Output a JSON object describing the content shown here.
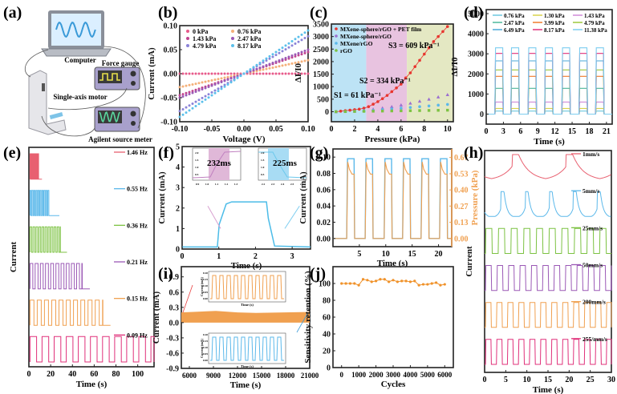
{
  "figure": {
    "panel_labels": [
      "(a)",
      "(b)",
      "(c)",
      "(d)",
      "(e)",
      "(f)",
      "(g)",
      "(h)",
      "(i)",
      "(j)"
    ]
  },
  "schematic": {
    "label": "(a)",
    "components": [
      "Computer",
      "Force gauge",
      "Single-axis motor",
      "Agilent source meter"
    ]
  },
  "chart_data": [
    {
      "id": "b",
      "type": "scatter",
      "title": "",
      "xlabel": "Voltage (V)",
      "ylabel": "Current (mA)",
      "xlim": [
        -0.1,
        0.1
      ],
      "ylim": [
        -0.1,
        0.1
      ],
      "xticks": [
        "-0.10",
        "-0.05",
        "0.00",
        "0.05",
        "0.10"
      ],
      "yticks": [
        "-0.10",
        "-0.05",
        "0.00",
        "0.05",
        "0.10"
      ],
      "legend": "top-left",
      "series": [
        {
          "name": "0 kPa",
          "color": "#e75a8a",
          "slope": 0.0
        },
        {
          "name": "0.76 kPa",
          "color": "#f4b07a",
          "slope": 0.28
        },
        {
          "name": "1.43 kPa",
          "color": "#c0448f",
          "slope": 0.45
        },
        {
          "name": "2.47 kPa",
          "color": "#9b59b6",
          "slope": 0.5
        },
        {
          "name": "4.79 kPa",
          "color": "#8a82d8",
          "slope": 0.78
        },
        {
          "name": "8.17 kPa",
          "color": "#5bc0eb",
          "slope": 0.9
        }
      ]
    },
    {
      "id": "c",
      "type": "scatter",
      "xlabel": "Pressure (kPa)",
      "ylabel": "ΔI/I0",
      "xlim": [
        0,
        10.5
      ],
      "ylim": [
        -400,
        3500
      ],
      "xticks": [
        "0",
        "2",
        "4",
        "6",
        "8",
        "10"
      ],
      "yticks": [
        "0",
        "500",
        "1000",
        "1500",
        "2000",
        "2500",
        "3000",
        "3500"
      ],
      "regions": [
        {
          "from": 0,
          "to": 3,
          "color": "#bde3f5"
        },
        {
          "from": 3,
          "to": 6.5,
          "color": "#e8c3e0"
        },
        {
          "from": 6.5,
          "to": 10.5,
          "color": "#e4e8c3"
        }
      ],
      "annotations": [
        "S1 = 61 kPa⁻¹",
        "S2 = 334 kPa⁻¹",
        "S3 = 609 kPa⁻¹"
      ],
      "legend": "top-left",
      "series": [
        {
          "name": "MXene-sphere/rGO + PET film",
          "color": "#e8352e",
          "x": [
            0.4,
            0.8,
            1.2,
            1.6,
            2.0,
            2.4,
            2.8,
            3.2,
            3.6,
            4.0,
            4.4,
            4.8,
            5.2,
            5.6,
            6.0,
            6.4,
            6.8,
            7.2,
            7.6,
            8.0,
            8.4,
            8.8,
            9.2,
            9.6,
            10.0
          ],
          "y": [
            0,
            20,
            40,
            60,
            80,
            100,
            140,
            200,
            300,
            400,
            520,
            650,
            800,
            950,
            1100,
            1350,
            1550,
            1800,
            2050,
            2300,
            2550,
            2800,
            3000,
            3200,
            3400
          ]
        },
        {
          "name": "MXene-sphere/rGO",
          "color": "#9b6fd0",
          "x": [
            0.4,
            1.2,
            2.0,
            2.8,
            3.6,
            4.4,
            5.2,
            6.0,
            6.8,
            7.6,
            8.4,
            9.2,
            10.0
          ],
          "y": [
            0,
            10,
            30,
            60,
            100,
            150,
            200,
            270,
            340,
            420,
            500,
            590,
            680
          ]
        },
        {
          "name": "MXene/rGO",
          "color": "#5bb8ea",
          "x": [
            0.4,
            1.2,
            2.0,
            2.8,
            3.6,
            4.4,
            5.2,
            6.0,
            6.8,
            7.6,
            8.4,
            9.2,
            10.0
          ],
          "y": [
            0,
            5,
            15,
            30,
            50,
            80,
            110,
            140,
            170,
            200,
            230,
            260,
            290
          ]
        },
        {
          "name": "rGO",
          "color": "#7cc242",
          "x": [
            0.4,
            1.2,
            2.0,
            2.8,
            3.6,
            4.4,
            5.2,
            6.0,
            6.8,
            7.6,
            8.4,
            9.2,
            10.0
          ],
          "y": [
            0,
            5,
            10,
            15,
            20,
            25,
            30,
            35,
            40,
            45,
            50,
            55,
            60
          ]
        }
      ]
    },
    {
      "id": "d",
      "type": "line",
      "xlabel": "Time (s)",
      "ylabel": "ΔI/I0",
      "xlim": [
        0,
        22
      ],
      "ylim": [
        -500,
        5200
      ],
      "xticks": [
        "0",
        "3",
        "6",
        "9",
        "12",
        "15",
        "18",
        "21"
      ],
      "yticks": [
        "0",
        "1000",
        "2000",
        "3000",
        "4000",
        "5000"
      ],
      "legend": "top",
      "pulse_starts": [
        1.5,
        4.3,
        7.3,
        10.2,
        13.2,
        16.2,
        19.1
      ],
      "pulse_width": 1.5,
      "series": [
        {
          "name": "0.76 kPa",
          "color": "#6cc8e0",
          "level": 150
        },
        {
          "name": "1.30 kPa",
          "color": "#d8d24a",
          "level": 280
        },
        {
          "name": "1.43 kPa",
          "color": "#d08ad8",
          "level": 600
        },
        {
          "name": "2.47 kPa",
          "color": "#4cb89a",
          "level": 1280
        },
        {
          "name": "3.99 kPa",
          "color": "#f07a2a",
          "level": 1880
        },
        {
          "name": "4.79 kPa",
          "color": "#9cc83a",
          "level": 2200
        },
        {
          "name": "6.49 kPa",
          "color": "#4aa8d8",
          "level": 2650
        },
        {
          "name": "8.17 kPa",
          "color": "#e0307a",
          "level": 3020
        },
        {
          "name": "11.38 kPa",
          "color": "#7ccdf0",
          "level": 3300
        }
      ]
    },
    {
      "id": "e",
      "type": "line",
      "xlabel": "Time (s)",
      "ylabel": "Current",
      "xlim": [
        0,
        115
      ],
      "xticks": [
        "0",
        "20",
        "40",
        "60",
        "80",
        "100"
      ],
      "legend": "right",
      "series": [
        {
          "name": "1.46 Hz",
          "color": "#e86070",
          "freq": 1.46,
          "end": 9,
          "tail": 12
        },
        {
          "name": "0.55 Hz",
          "color": "#5bb8ea",
          "freq": 0.55,
          "end": 19,
          "tail": 28
        },
        {
          "name": "0.36 Hz",
          "color": "#7cc242",
          "freq": 0.36,
          "end": 29,
          "tail": 35
        },
        {
          "name": "0.21 Hz",
          "color": "#9b59b6",
          "freq": 0.21,
          "end": 49,
          "tail": 56
        },
        {
          "name": "0.15 Hz",
          "color": "#f0a050",
          "freq": 0.15,
          "end": 68,
          "tail": 75
        },
        {
          "name": "0.09 Hz",
          "color": "#e0307a",
          "freq": 0.09,
          "end": 115,
          "tail": 115
        }
      ]
    },
    {
      "id": "f",
      "type": "line",
      "xlabel": "Time (s)",
      "ylabel": "Current (mA)",
      "xlim": [
        0,
        3.5
      ],
      "ylim": [
        0,
        5
      ],
      "xticks": [
        "0",
        "1",
        "2",
        "3"
      ],
      "yticks": [
        "0",
        "1",
        "2",
        "3",
        "4",
        "5"
      ],
      "color": "#4cbce8",
      "baseline": 0.1,
      "high": 2.3,
      "rise_start": 0.96,
      "rise_end": 1.2,
      "fall_start": 2.3,
      "fall_end": 2.52,
      "insets": [
        {
          "label": "232ms",
          "shade": "#e0b8d8",
          "line": "#c080c0",
          "xticks": [
            "0.9",
            "1.0",
            "1.1",
            "1.2",
            "1.3"
          ],
          "yticks": [
            "0.5",
            "1.0",
            "1.5",
            "2.0"
          ]
        },
        {
          "label": "225ms",
          "shade": "#a8dcf4",
          "line": "#6cc8ec",
          "xticks": [
            "2.2",
            "2.3",
            "2.4",
            "2.5",
            "2.6"
          ],
          "yticks": [
            "0.5",
            "1.0",
            "1.5",
            "2.0"
          ]
        }
      ]
    },
    {
      "id": "g",
      "type": "line",
      "xlabel": "Time (s)",
      "ylabel": "Current (mA)",
      "y2label": "Pressure (kPa)",
      "xlim": [
        0,
        22.5
      ],
      "ylim": [
        -0.01,
        0.11
      ],
      "y2lim": [
        -0.067,
        0.737
      ],
      "xticks": [
        "5",
        "10",
        "15",
        "20"
      ],
      "yticks": [
        "0.00",
        "0.02",
        "0.04",
        "0.06",
        "0.08",
        "0.10"
      ],
      "y2ticks": [
        "0.00",
        "0.13",
        "0.27",
        "0.40",
        "0.53",
        "0.67"
      ],
      "pulse_starts": [
        2.6,
        6.1,
        9.7,
        13.2,
        16.7,
        20.2
      ],
      "pulse_width": 1.5,
      "series": [
        {
          "name": "Current",
          "color": "#5bb8ea",
          "level": 0.098
        },
        {
          "name": "Pressure",
          "color": "#f0a050",
          "peak": 0.63,
          "settle": 0.53
        }
      ]
    },
    {
      "id": "h",
      "type": "line",
      "xlabel": "Time (s)",
      "ylabel": "Current",
      "xlim": [
        0,
        30
      ],
      "xticks": [
        "0",
        "5",
        "10",
        "15",
        "20",
        "25",
        "30"
      ],
      "legend": "right",
      "series": [
        {
          "name": "1mm/s",
          "color": "#e86070",
          "period": 12.8
        },
        {
          "name": "5mm/s",
          "color": "#5bb8ea",
          "period": 5.7
        },
        {
          "name": "25mm/s",
          "color": "#7cc242",
          "period": 3.0
        },
        {
          "name": "50mm/s",
          "color": "#9b59b6",
          "period": 2.7
        },
        {
          "name": "200mm/s",
          "color": "#f0a050",
          "period": 2.6
        },
        {
          "name": "255/mm/s",
          "color": "#e0307a",
          "period": 2.6
        }
      ]
    },
    {
      "id": "i",
      "type": "area",
      "xlabel": "Time (s)",
      "ylabel": "Current (mA)",
      "xlim": [
        5000,
        21000
      ],
      "ylim": [
        -0.9,
        1.1
      ],
      "xticks": [
        "6000",
        "9000",
        "12000",
        "15000",
        "18000",
        "21000"
      ],
      "yticks": [
        "-0.9",
        "-0.6",
        "-0.3",
        "0.0",
        "0.3",
        "0.6",
        "0.9"
      ],
      "band": {
        "low": 0.0,
        "high": 0.22,
        "color": "#f0a050"
      },
      "insets": [
        {
          "color": "#f0a050",
          "xlabel": "Time (s)",
          "ylabel": "Current (mA)",
          "yticks": [
            "0.00",
            "0.05",
            "0.10",
            "0.15",
            "0.20"
          ]
        },
        {
          "color": "#5bb8ea",
          "xlabel": "Time (s)",
          "ylabel": "Current (mA)",
          "yticks": [
            "0.00",
            "0.05",
            "0.10",
            "0.15",
            "0.20"
          ]
        }
      ]
    },
    {
      "id": "j",
      "type": "line",
      "xlabel": "Cycles",
      "ylabel": "Sensitivity retention (%)",
      "xlim": [
        -500,
        6500
      ],
      "ylim": [
        0,
        120
      ],
      "xticks": [
        "0",
        "1000",
        "2000",
        "3000",
        "4000",
        "5000",
        "6000"
      ],
      "yticks": [
        "0",
        "20",
        "40",
        "60",
        "80",
        "100"
      ],
      "color": "#f0922a",
      "x": [
        0,
        250,
        500,
        750,
        1000,
        1250,
        1500,
        1750,
        2000,
        2250,
        2500,
        2750,
        3000,
        3250,
        3500,
        3750,
        4000,
        4250,
        4500,
        4750,
        5000,
        5250,
        5500,
        5750,
        6000
      ],
      "y": [
        100,
        100,
        100,
        100,
        98,
        105,
        104,
        102,
        103,
        105,
        105,
        102,
        104,
        102,
        103,
        103,
        102,
        103,
        98,
        99,
        99,
        100,
        101,
        98,
        99
      ]
    }
  ]
}
